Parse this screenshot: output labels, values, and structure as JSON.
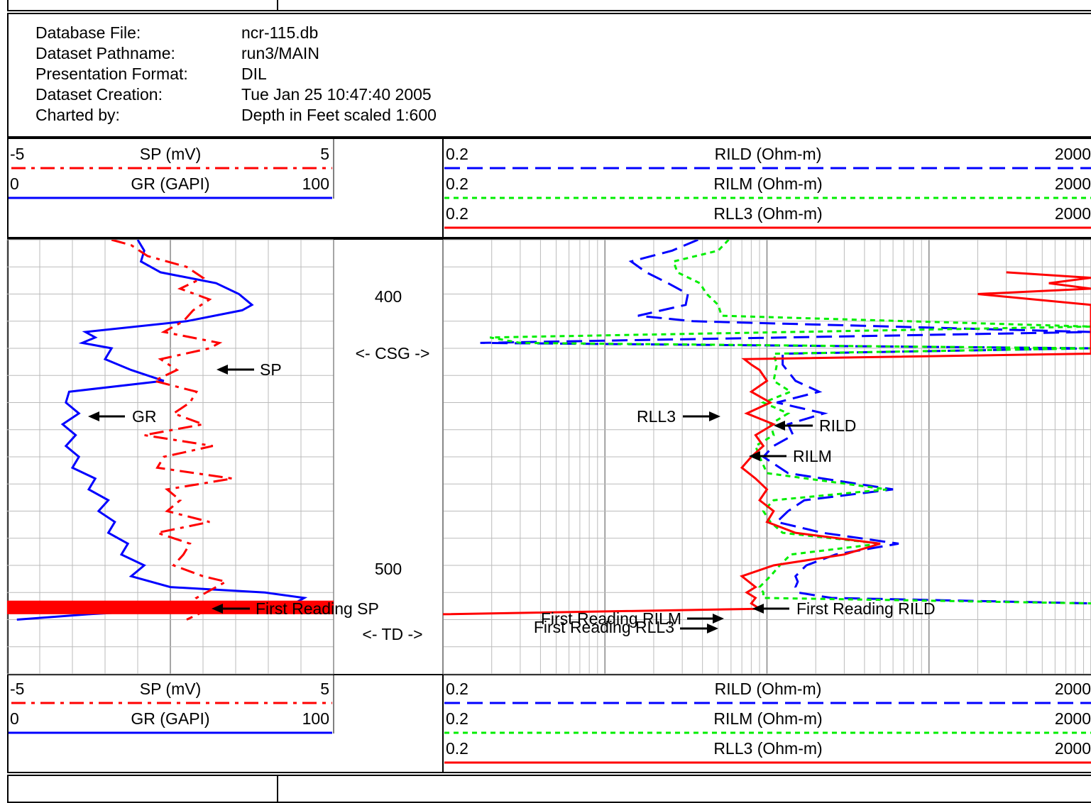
{
  "header": {
    "rows": [
      {
        "label": "Database File:",
        "value": "ncr-115.db"
      },
      {
        "label": "Dataset Pathname:",
        "value": "run3/MAIN"
      },
      {
        "label": "Presentation Format:",
        "value": "DIL"
      },
      {
        "label": "Dataset Creation:",
        "value": "Tue Jan 25 10:47:40 2005"
      },
      {
        "label": "Charted by:",
        "value": "Depth in Feet scaled 1:600"
      }
    ]
  },
  "legend": {
    "sp": {
      "min": "-5",
      "name": "SP (mV)",
      "max": "5",
      "color": "#ff0000"
    },
    "gr": {
      "min": "0",
      "name": "GR (GAPI)",
      "max": "100",
      "color": "#0000ff"
    },
    "rild": {
      "min": "0.2",
      "name": "RILD (Ohm-m)",
      "max": "2000",
      "color": "#0000ff"
    },
    "rilm": {
      "min": "0.2",
      "name": "RILM (Ohm-m)",
      "max": "2000",
      "color": "#00ee00"
    },
    "rll3": {
      "min": "0.2",
      "name": "RLL3 (Ohm-m)",
      "max": "2000",
      "color": "#ff0000"
    }
  },
  "depth_track": {
    "labels": [
      "400",
      "500"
    ],
    "casing_label": "<- CSG ->",
    "td_label": "<- TD ->"
  },
  "annotations": {
    "sp": "SP",
    "gr": "GR",
    "first_sp": "First Reading SP",
    "rll3": "RLL3",
    "rild": "RILD",
    "rilm": "RILM",
    "first_rilm": "First Reading RILM",
    "first_rll3": "First Reading RLL3",
    "first_rild": "First Reading RILD"
  },
  "chart_data": {
    "type": "line",
    "depth_unit": "ft",
    "depth_range": [
      380,
      540
    ],
    "log_scale_resistivity": true,
    "tracks": [
      {
        "name": "track1",
        "series": [
          {
            "name": "GR (GAPI)",
            "range": [
              0,
              100
            ],
            "scale": "linear",
            "color": "#0000ff",
            "style": "solid",
            "depth": [
              380,
              384,
              388,
              392,
              396,
              400,
              404,
              406,
              410,
              414,
              416,
              418,
              420,
              424,
              428,
              432,
              436,
              440,
              444,
              448,
              452,
              456,
              460,
              464,
              468,
              472,
              476,
              480,
              484,
              488,
              492,
              496,
              500,
              504,
              508,
              510,
              512,
              514,
              516,
              518,
              520
            ],
            "values": [
              40,
              42,
              41,
              47,
              64,
              71,
              75,
              72,
              55,
              24,
              27,
              23,
              32,
              30,
              38,
              48,
              19,
              18,
              22,
              17,
              21,
              18,
              22,
              20,
              27,
              25,
              31,
              28,
              33,
              31,
              37,
              35,
              42,
              38,
              50,
              79,
              91,
              88,
              55,
              25,
              3
            ]
          },
          {
            "name": "SP (mV)",
            "range": [
              -5,
              5
            ],
            "scale": "linear",
            "color": "#ff0000",
            "style": "dashdot",
            "depth": [
              380,
              382,
              386,
              390,
              394,
              398,
              402,
              406,
              410,
              414,
              418,
              420,
              424,
              428,
              432,
              436,
              440,
              444,
              448,
              452,
              456,
              460,
              464,
              468,
              472,
              476,
              480,
              484,
              488,
              492,
              496,
              500,
              504,
              506,
              508,
              512,
              516,
              520
            ],
            "values": [
              -1.8,
              -1.2,
              -0.7,
              0.5,
              1.0,
              0.3,
              1.2,
              0.7,
              0.4,
              -0.2,
              1.5,
              1.2,
              -0.3,
              0.2,
              -0.5,
              0.8,
              0.6,
              0.1,
              1.0,
              -0.8,
              1.3,
              -0.2,
              -0.4,
              1.9,
              -0.1,
              0.3,
              -0.1,
              1.2,
              -0.4,
              0.6,
              0.4,
              0.1,
              1.0,
              1.7,
              1.4,
              0.8,
              1.2,
              0.5
            ]
          }
        ]
      },
      {
        "name": "track2",
        "series": [
          {
            "name": "RILD (Ohm-m)",
            "range": [
              0.2,
              2000
            ],
            "scale": "log",
            "color": "#0000ff",
            "style": "dashed",
            "depth": [
              380,
              384,
              388,
              392,
              396,
              400,
              404,
              408,
              410,
              414,
              418,
              420,
              422,
              426,
              432,
              436,
              440,
              444,
              448,
              452,
              456,
              460,
              466,
              472,
              476,
              480,
              484,
              488,
              492,
              496,
              500,
              504,
              506,
              508,
              510,
              512,
              514
            ],
            "values": [
              7.5,
              5.2,
              2.9,
              3.6,
              4.9,
              6.5,
              6.3,
              3.2,
              7.0,
              2000,
              0.34,
              2000,
              25,
              25,
              30,
              42,
              23,
              45,
              27,
              29,
              22,
              19,
              27,
              120,
              34,
              27,
              23,
              44,
              130,
              53,
              35,
              30,
              31,
              30,
              31,
              50,
              2000
            ]
          },
          {
            "name": "RILM (Ohm-m)",
            "range": [
              0.2,
              2000
            ],
            "scale": "log",
            "color": "#00ee00",
            "style": "dotted",
            "depth": [
              380,
              384,
              388,
              392,
              396,
              400,
              404,
              408,
              412,
              416,
              418,
              420,
              422,
              426,
              432,
              436,
              440,
              444,
              448,
              452,
              456,
              460,
              466,
              472,
              476,
              480,
              484,
              488,
              492,
              496,
              500,
              504,
              508,
              510,
              512,
              514
            ],
            "values": [
              11.6,
              10,
              5.3,
              5.6,
              7.7,
              8.5,
              10,
              10.5,
              2000,
              0.39,
              0.6,
              2000,
              22,
              23,
              22,
              28,
              19,
              27,
              21,
              22,
              17,
              18,
              20,
              110,
              22,
              19,
              21,
              25,
              100,
              28,
              24,
              21,
              18,
              19,
              19,
              2000
            ]
          },
          {
            "name": "RLL3 (Ohm-m)",
            "range": [
              0.2,
              2000
            ],
            "scale": "log",
            "color": "#ff0000",
            "style": "solid",
            "depth": [
              392,
              394,
              396,
              398,
              400,
              404,
              408,
              412,
              414,
              416,
              418,
              420,
              422,
              424,
              426,
              428,
              432,
              436,
              440,
              444,
              448,
              452,
              456,
              460,
              464,
              468,
              472,
              476,
              480,
              484,
              488,
              492,
              496,
              500,
              504,
              508,
              510,
              512,
              514,
              516,
              518
            ],
            "values": [
              600,
              2000,
              1100,
              2000,
              400,
              2000,
              2000,
              2000,
              2000,
              2000,
              2000,
              2000,
              2000,
              14.5,
              16,
              18,
              20,
              16,
              21,
              15,
              22,
              17,
              19,
              16,
              14,
              17,
              20,
              18,
              22,
              20,
              30,
              100,
              60,
              22,
              14,
              17,
              15,
              17,
              16,
              18,
              0.2
            ]
          }
        ]
      }
    ]
  }
}
